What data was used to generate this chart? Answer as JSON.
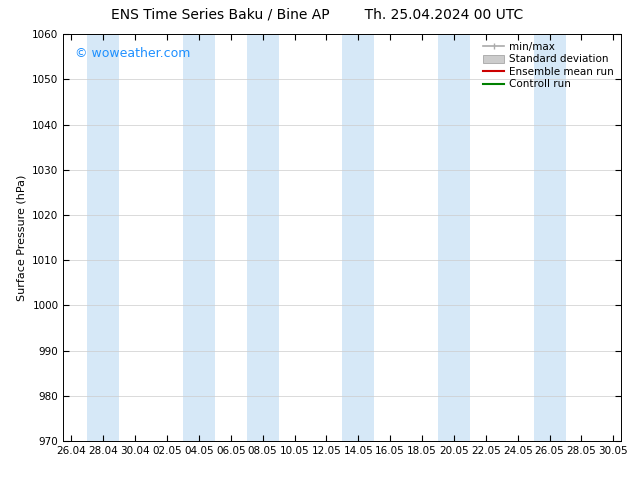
{
  "title_left": "ENS Time Series Baku / Bine AP",
  "title_right": "Th. 25.04.2024 00 UTC",
  "ylabel": "Surface Pressure (hPa)",
  "ylim": [
    970,
    1060
  ],
  "yticks": [
    970,
    980,
    990,
    1000,
    1010,
    1020,
    1030,
    1040,
    1050,
    1060
  ],
  "xtick_labels": [
    "26.04",
    "28.04",
    "30.04",
    "02.05",
    "04.05",
    "06.05",
    "08.05",
    "10.05",
    "12.05",
    "14.05",
    "16.05",
    "18.05",
    "20.05",
    "22.05",
    "24.05",
    "26.05",
    "28.05",
    "30.05"
  ],
  "xtick_positions": [
    0,
    2,
    4,
    6,
    8,
    10,
    12,
    14,
    16,
    18,
    20,
    22,
    24,
    26,
    28,
    30,
    32,
    34
  ],
  "xlim": [
    -0.5,
    34.5
  ],
  "watermark": "© woweather.com",
  "watermark_color": "#1E90FF",
  "background_color": "#ffffff",
  "plot_bg_color": "#ffffff",
  "shaded_bands": [
    {
      "x_start": 1.0,
      "x_end": 3.0
    },
    {
      "x_start": 7.0,
      "x_end": 9.0
    },
    {
      "x_start": 11.0,
      "x_end": 13.0
    },
    {
      "x_start": 17.0,
      "x_end": 19.0
    },
    {
      "x_start": 23.0,
      "x_end": 25.0
    },
    {
      "x_start": 29.0,
      "x_end": 31.0
    }
  ],
  "band_color": "#d6e8f7",
  "legend_entries": [
    {
      "label": "min/max",
      "color": "#aaaaaa",
      "lw": 1.2,
      "style": "minmax"
    },
    {
      "label": "Standard deviation",
      "color": "#cccccc",
      "lw": 8,
      "style": "band"
    },
    {
      "label": "Ensemble mean run",
      "color": "#cc0000",
      "lw": 1.5,
      "style": "line"
    },
    {
      "label": "Controll run",
      "color": "#008000",
      "lw": 1.5,
      "style": "line"
    }
  ],
  "grid_color": "#cccccc",
  "tick_color": "#000000",
  "spine_color": "#000000",
  "title_fontsize": 10,
  "label_fontsize": 8,
  "tick_fontsize": 7.5,
  "legend_fontsize": 7.5,
  "watermark_fontsize": 9
}
